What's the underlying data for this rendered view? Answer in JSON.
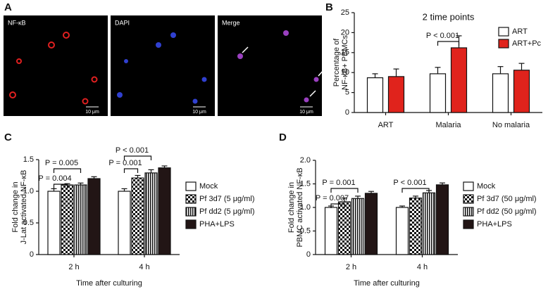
{
  "figure": {
    "panel_labels": [
      "A",
      "B",
      "C",
      "D"
    ],
    "panel_a": {
      "images": [
        "NF-κB",
        "DAPI",
        "Merge"
      ],
      "scale_bar": "10 μm"
    }
  },
  "chart_data": [
    {
      "type": "bar",
      "title": "2 time points",
      "ylabel": [
        "Percentage of",
        "NF-κB+ PBMCs"
      ],
      "categories": [
        "ART",
        "Malaria",
        "No malaria"
      ],
      "series": [
        {
          "name": "ART",
          "color": "#ffffff",
          "pattern": "solid",
          "values": [
            8.7,
            9.7,
            9.7
          ],
          "errors": [
            1.0,
            1.6,
            1.8
          ]
        },
        {
          "name": "ART+Pc",
          "color": "#e0231c",
          "pattern": "solid",
          "values": [
            9.0,
            16.2,
            10.6
          ],
          "errors": [
            1.9,
            3.0,
            1.7
          ]
        }
      ],
      "ylim": [
        0,
        25
      ],
      "yticks": [
        0,
        5,
        10,
        15,
        20,
        25
      ],
      "legend": "upper right",
      "annotations": [
        "P < 0.001"
      ]
    },
    {
      "type": "bar",
      "xlabel": "Time after culturing",
      "ylabel": [
        "Fold change in",
        "J-Lat activated NF-κB"
      ],
      "categories": [
        "2 h",
        "4 h"
      ],
      "series": [
        {
          "name": "Mock",
          "color": "#ffffff",
          "pattern": "solid",
          "values": [
            1.0,
            1.0
          ],
          "errors": [
            0.04,
            0.04
          ]
        },
        {
          "name": "Pf 3d7 (5 μg/ml)",
          "color": "#111111",
          "pattern": "checker",
          "values": [
            1.1,
            1.21
          ],
          "errors": [
            0.02,
            0.04
          ]
        },
        {
          "name": "Pf dd2 (5 μg/ml)",
          "color": "#111111",
          "pattern": "vlines",
          "values": [
            1.1,
            1.29
          ],
          "errors": [
            0.03,
            0.05
          ]
        },
        {
          "name": "PHA+LPS",
          "color": "#221515",
          "pattern": "solid",
          "values": [
            1.2,
            1.37
          ],
          "errors": [
            0.03,
            0.03
          ]
        }
      ],
      "ylim": [
        0,
        1.5
      ],
      "yticks": [
        0,
        0.5,
        {
          "value": 1,
          "label": "1.0"
        },
        1.5
      ],
      "legend": "right",
      "annotations": [
        "P = 0.005",
        "P = 0.004",
        "P < 0.001",
        "P = 0.001"
      ]
    },
    {
      "type": "bar",
      "xlabel": "Time after culturing",
      "ylabel": [
        "Fold change in",
        "PBMC activated NF-κB"
      ],
      "categories": [
        "2 h",
        "4 h"
      ],
      "series": [
        {
          "name": "Mock",
          "color": "#ffffff",
          "pattern": "solid",
          "values": [
            1.0,
            1.0
          ],
          "errors": [
            0.03,
            0.03
          ]
        },
        {
          "name": "Pf 3d7 (50 μg/ml)",
          "color": "#111111",
          "pattern": "checker",
          "values": [
            1.12,
            1.2
          ],
          "errors": [
            0.08,
            0.04
          ]
        },
        {
          "name": "Pf dd2 (50 μg/ml)",
          "color": "#111111",
          "pattern": "vlines",
          "values": [
            1.19,
            1.31
          ],
          "errors": [
            0.05,
            0.05
          ]
        },
        {
          "name": "PHA+LPS",
          "color": "#221515",
          "pattern": "solid",
          "values": [
            1.3,
            1.48
          ],
          "errors": [
            0.04,
            0.04
          ]
        }
      ],
      "ylim": [
        0,
        2
      ],
      "yticks": [
        0,
        0.5,
        {
          "value": 1,
          "label": "1.0"
        },
        1.5,
        {
          "value": 2,
          "label": "2.0"
        }
      ],
      "legend": "right",
      "annotations": [
        "P = 0.001",
        "P = 0.007",
        "P < 0.001"
      ]
    }
  ]
}
